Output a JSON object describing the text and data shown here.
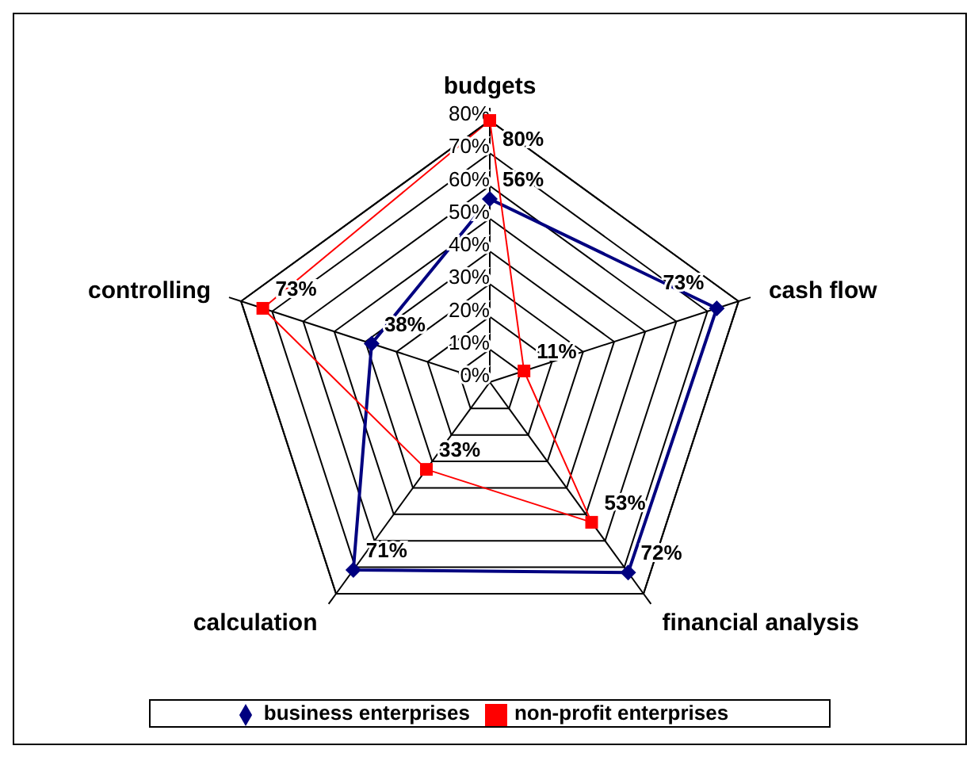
{
  "chart_data": {
    "type": "radar",
    "categories": [
      "budgets",
      "cash flow",
      "financial analysis",
      "calculation",
      "controlling"
    ],
    "series": [
      {
        "name": "business enterprises",
        "color": "#000080",
        "marker": "diamond",
        "values": [
          56,
          73,
          72,
          71,
          38
        ],
        "value_labels": [
          "56%",
          "73%",
          "72%",
          "71%",
          "38%"
        ]
      },
      {
        "name": "non-profit enterprises",
        "color": "#ff0000",
        "marker": "square",
        "values": [
          80,
          11,
          53,
          33,
          73
        ],
        "value_labels": [
          "80%",
          "11%",
          "53%",
          "33%",
          "73%"
        ]
      }
    ],
    "ylim": [
      0,
      80
    ],
    "yticks": [
      {
        "value": 0,
        "label": "0%"
      },
      {
        "value": 10,
        "label": "10%"
      },
      {
        "value": 20,
        "label": "20%"
      },
      {
        "value": 30,
        "label": "30%"
      },
      {
        "value": 40,
        "label": "40%"
      },
      {
        "value": 50,
        "label": "50%"
      },
      {
        "value": 60,
        "label": "60%"
      },
      {
        "value": 70,
        "label": "70%"
      },
      {
        "value": 80,
        "label": "80%"
      }
    ],
    "grid": true,
    "legend": "bottom"
  }
}
